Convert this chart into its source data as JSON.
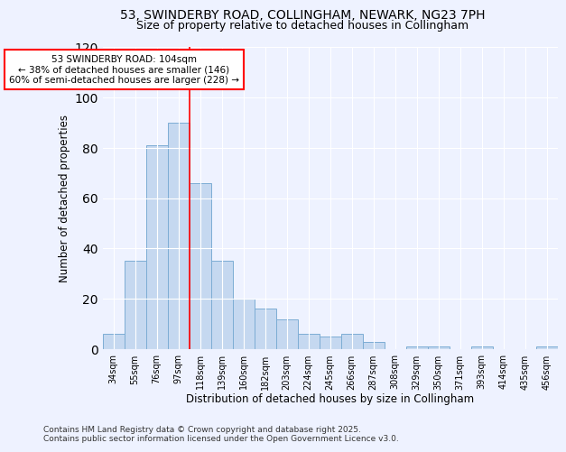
{
  "title1": "53, SWINDERBY ROAD, COLLINGHAM, NEWARK, NG23 7PH",
  "title2": "Size of property relative to detached houses in Collingham",
  "xlabel": "Distribution of detached houses by size in Collingham",
  "ylabel": "Number of detached properties",
  "categories": [
    "34sqm",
    "55sqm",
    "76sqm",
    "97sqm",
    "118sqm",
    "139sqm",
    "160sqm",
    "182sqm",
    "203sqm",
    "224sqm",
    "245sqm",
    "266sqm",
    "287sqm",
    "308sqm",
    "329sqm",
    "350sqm",
    "371sqm",
    "393sqm",
    "414sqm",
    "435sqm",
    "456sqm"
  ],
  "values": [
    6,
    35,
    81,
    90,
    66,
    35,
    20,
    16,
    12,
    6,
    5,
    6,
    3,
    0,
    1,
    1,
    0,
    1,
    0,
    0,
    1
  ],
  "bar_color": "#c5d8f0",
  "bar_edge_color": "#7dadd4",
  "vline_x": 3.5,
  "vline_color": "red",
  "annotation_title": "53 SWINDERBY ROAD: 104sqm",
  "annotation_line1": "← 38% of detached houses are smaller (146)",
  "annotation_line2": "60% of semi-detached houses are larger (228) →",
  "annotation_box_color": "white",
  "annotation_box_edge": "red",
  "ylim": [
    0,
    120
  ],
  "yticks": [
    0,
    20,
    40,
    60,
    80,
    100,
    120
  ],
  "footer1": "Contains HM Land Registry data © Crown copyright and database right 2025.",
  "footer2": "Contains public sector information licensed under the Open Government Licence v3.0.",
  "bg_color": "#eef2ff"
}
